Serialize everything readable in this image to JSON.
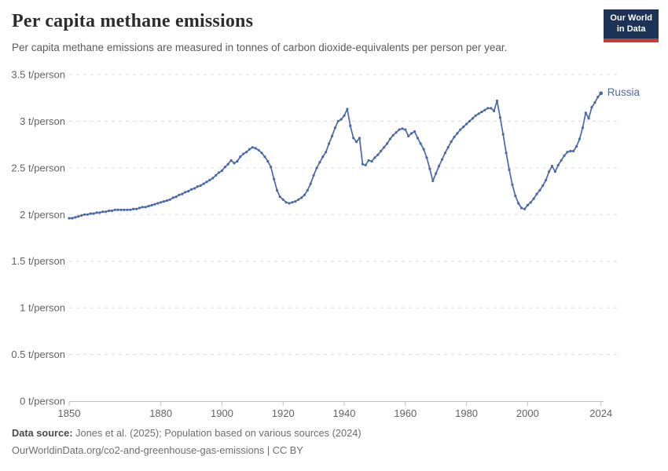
{
  "header": {
    "title": "Per capita methane emissions",
    "subtitle": "Per capita methane emissions are measured in tonnes of carbon dioxide-equivalents per person per year."
  },
  "logo": {
    "line1": "Our World",
    "line2": "in Data",
    "bg": "#1d3356",
    "accent": "#cc3b33"
  },
  "chart_data": {
    "type": "line",
    "title": "Per capita methane emissions",
    "unit": "t/person",
    "grid": "horizontal dashed",
    "legend": "series label at right end of line",
    "xlim": [
      1850,
      2024
    ],
    "ylim": [
      0,
      3.5
    ],
    "xticks": [
      1850,
      1880,
      1900,
      1920,
      1940,
      1960,
      1980,
      2000,
      2024
    ],
    "yticks": [
      {
        "value": 0,
        "label": "0 t/person"
      },
      {
        "value": 0.5,
        "label": "0.5 t/person"
      },
      {
        "value": 1,
        "label": "1 t/person"
      },
      {
        "value": 1.5,
        "label": "1.5 t/person"
      },
      {
        "value": 2,
        "label": "2 t/person"
      },
      {
        "value": 2.5,
        "label": "2.5 t/person"
      },
      {
        "value": 3,
        "label": "3 t/person"
      },
      {
        "value": 3.5,
        "label": "3.5 t/person"
      }
    ],
    "x": [
      1850,
      1851,
      1852,
      1853,
      1854,
      1855,
      1856,
      1857,
      1858,
      1859,
      1860,
      1861,
      1862,
      1863,
      1864,
      1865,
      1866,
      1867,
      1868,
      1869,
      1870,
      1871,
      1872,
      1873,
      1874,
      1875,
      1876,
      1877,
      1878,
      1879,
      1880,
      1881,
      1882,
      1883,
      1884,
      1885,
      1886,
      1887,
      1888,
      1889,
      1890,
      1891,
      1892,
      1893,
      1894,
      1895,
      1896,
      1897,
      1898,
      1899,
      1900,
      1901,
      1902,
      1903,
      1904,
      1905,
      1906,
      1907,
      1908,
      1909,
      1910,
      1911,
      1912,
      1913,
      1914,
      1915,
      1916,
      1917,
      1918,
      1919,
      1920,
      1921,
      1922,
      1923,
      1924,
      1925,
      1926,
      1927,
      1928,
      1929,
      1930,
      1931,
      1932,
      1933,
      1934,
      1935,
      1936,
      1937,
      1938,
      1939,
      1940,
      1941,
      1942,
      1943,
      1944,
      1945,
      1946,
      1947,
      1948,
      1949,
      1950,
      1951,
      1952,
      1953,
      1954,
      1955,
      1956,
      1957,
      1958,
      1959,
      1960,
      1961,
      1962,
      1963,
      1964,
      1965,
      1966,
      1967,
      1968,
      1969,
      1970,
      1971,
      1972,
      1973,
      1974,
      1975,
      1976,
      1977,
      1978,
      1979,
      1980,
      1981,
      1982,
      1983,
      1984,
      1985,
      1986,
      1987,
      1988,
      1989,
      1990,
      1991,
      1992,
      1993,
      1994,
      1995,
      1996,
      1997,
      1998,
      1999,
      2000,
      2001,
      2002,
      2003,
      2004,
      2005,
      2006,
      2007,
      2008,
      2009,
      2010,
      2011,
      2012,
      2013,
      2014,
      2015,
      2016,
      2017,
      2018,
      2019,
      2020,
      2021,
      2022,
      2023,
      2024
    ],
    "series": [
      {
        "name": "Russia",
        "color": "#4B68A8",
        "values": [
          1.96,
          1.96,
          1.97,
          1.98,
          1.99,
          2.0,
          2.0,
          2.01,
          2.01,
          2.02,
          2.02,
          2.03,
          2.03,
          2.04,
          2.04,
          2.05,
          2.05,
          2.05,
          2.05,
          2.05,
          2.05,
          2.06,
          2.06,
          2.07,
          2.08,
          2.08,
          2.09,
          2.1,
          2.11,
          2.12,
          2.13,
          2.14,
          2.15,
          2.16,
          2.18,
          2.19,
          2.21,
          2.22,
          2.24,
          2.25,
          2.27,
          2.28,
          2.3,
          2.31,
          2.33,
          2.35,
          2.37,
          2.39,
          2.42,
          2.45,
          2.47,
          2.51,
          2.54,
          2.58,
          2.55,
          2.57,
          2.62,
          2.65,
          2.67,
          2.7,
          2.72,
          2.71,
          2.69,
          2.66,
          2.62,
          2.57,
          2.51,
          2.38,
          2.26,
          2.19,
          2.16,
          2.13,
          2.12,
          2.13,
          2.14,
          2.16,
          2.18,
          2.21,
          2.26,
          2.33,
          2.42,
          2.5,
          2.56,
          2.62,
          2.67,
          2.76,
          2.84,
          2.93,
          3.0,
          3.02,
          3.06,
          3.13,
          2.95,
          2.82,
          2.78,
          2.82,
          2.54,
          2.53,
          2.58,
          2.57,
          2.61,
          2.64,
          2.68,
          2.72,
          2.76,
          2.81,
          2.85,
          2.88,
          2.91,
          2.92,
          2.91,
          2.84,
          2.87,
          2.89,
          2.82,
          2.76,
          2.7,
          2.61,
          2.49,
          2.36,
          2.44,
          2.52,
          2.59,
          2.66,
          2.72,
          2.78,
          2.83,
          2.87,
          2.91,
          2.94,
          2.97,
          3.0,
          3.03,
          3.06,
          3.08,
          3.1,
          3.12,
          3.14,
          3.14,
          3.11,
          3.22,
          3.04,
          2.86,
          2.66,
          2.48,
          2.32,
          2.2,
          2.12,
          2.07,
          2.06,
          2.1,
          2.13,
          2.17,
          2.22,
          2.26,
          2.31,
          2.37,
          2.46,
          2.52,
          2.46,
          2.53,
          2.58,
          2.63,
          2.67,
          2.68,
          2.68,
          2.73,
          2.81,
          2.93,
          3.09,
          3.03,
          3.15,
          3.2,
          3.26,
          3.3
        ]
      }
    ]
  },
  "footer": {
    "source_label": "Data source:",
    "source_text": " Jones et al. (2025); Population based on various sources (2024)",
    "link": "OurWorldinData.org/co2-and-greenhouse-gas-emissions | CC BY"
  }
}
